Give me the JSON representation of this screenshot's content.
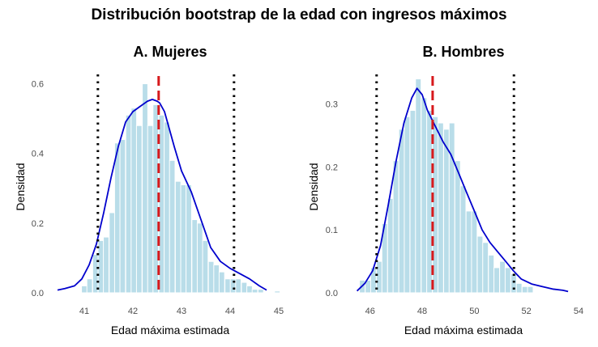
{
  "title": "Distribución bootstrap de la edad con ingresos máximos",
  "colors": {
    "bar_fill": "#add8e6",
    "bar_stroke": "#ffffff",
    "density_line": "#0000cd",
    "estimate_line": "#d7191c",
    "ci_line": "#000000"
  },
  "chart_data": [
    {
      "type": "bar",
      "title": "A. Mujeres",
      "xlabel": "Edad máxima estimada",
      "ylabel": "Densidad",
      "xlim": [
        40.4,
        45.1
      ],
      "ylim": [
        0,
        0.65
      ],
      "xticks": [
        41,
        42,
        43,
        44,
        45
      ],
      "yticks": [
        0.0,
        0.2,
        0.4,
        0.6
      ],
      "ytick_labels": [
        "0.0",
        "0.2",
        "0.4",
        "0.6"
      ],
      "bin_width": 0.113,
      "bins": [
        {
          "x": 41.0,
          "y": 0.02
        },
        {
          "x": 41.11,
          "y": 0.04
        },
        {
          "x": 41.23,
          "y": 0.11
        },
        {
          "x": 41.34,
          "y": 0.15
        },
        {
          "x": 41.45,
          "y": 0.16
        },
        {
          "x": 41.57,
          "y": 0.23
        },
        {
          "x": 41.68,
          "y": 0.43
        },
        {
          "x": 41.79,
          "y": 0.44
        },
        {
          "x": 41.91,
          "y": 0.51
        },
        {
          "x": 42.02,
          "y": 0.53
        },
        {
          "x": 42.13,
          "y": 0.48
        },
        {
          "x": 42.25,
          "y": 0.6
        },
        {
          "x": 42.36,
          "y": 0.48
        },
        {
          "x": 42.47,
          "y": 0.54
        },
        {
          "x": 42.59,
          "y": 0.51
        },
        {
          "x": 42.7,
          "y": 0.49
        },
        {
          "x": 42.81,
          "y": 0.38
        },
        {
          "x": 42.93,
          "y": 0.32
        },
        {
          "x": 43.04,
          "y": 0.31
        },
        {
          "x": 43.15,
          "y": 0.31
        },
        {
          "x": 43.27,
          "y": 0.21
        },
        {
          "x": 43.38,
          "y": 0.2
        },
        {
          "x": 43.49,
          "y": 0.15
        },
        {
          "x": 43.61,
          "y": 0.09
        },
        {
          "x": 43.72,
          "y": 0.08
        },
        {
          "x": 43.83,
          "y": 0.06
        },
        {
          "x": 43.95,
          "y": 0.04
        },
        {
          "x": 44.06,
          "y": 0.04
        },
        {
          "x": 44.17,
          "y": 0.04
        },
        {
          "x": 44.29,
          "y": 0.03
        },
        {
          "x": 44.4,
          "y": 0.02
        },
        {
          "x": 44.51,
          "y": 0.01
        },
        {
          "x": 44.63,
          "y": 0.01
        },
        {
          "x": 44.97,
          "y": 0.005
        }
      ],
      "density": {
        "x": [
          40.45,
          40.6,
          40.8,
          40.95,
          41.1,
          41.25,
          41.4,
          41.55,
          41.7,
          41.85,
          42.0,
          42.15,
          42.3,
          42.4,
          42.5,
          42.55,
          42.65,
          42.75,
          42.85,
          43.0,
          43.2,
          43.4,
          43.6,
          43.8,
          44.0,
          44.2,
          44.4,
          44.6,
          44.75
        ],
        "y": [
          0.008,
          0.012,
          0.02,
          0.04,
          0.08,
          0.14,
          0.23,
          0.33,
          0.42,
          0.49,
          0.52,
          0.535,
          0.55,
          0.555,
          0.55,
          0.545,
          0.52,
          0.47,
          0.42,
          0.35,
          0.29,
          0.21,
          0.13,
          0.09,
          0.07,
          0.055,
          0.04,
          0.02,
          0.008
        ]
      },
      "estimate": 42.53,
      "ci": [
        41.28,
        44.08
      ]
    },
    {
      "type": "bar",
      "title": "B. Hombres",
      "xlabel": "Edad máxima estimada",
      "ylabel": "Densidad",
      "xlim": [
        45.2,
        54.0
      ],
      "ylim": [
        0,
        0.36
      ],
      "xticks": [
        46,
        48,
        50,
        52,
        54
      ],
      "yticks": [
        0.0,
        0.1,
        0.2,
        0.3
      ],
      "ytick_labels": [
        "0.0",
        "0.1",
        "0.2",
        "0.3"
      ],
      "bin_width": 0.215,
      "bins": [
        {
          "x": 45.7,
          "y": 0.02
        },
        {
          "x": 45.92,
          "y": 0.02
        },
        {
          "x": 46.13,
          "y": 0.04
        },
        {
          "x": 46.35,
          "y": 0.05
        },
        {
          "x": 46.56,
          "y": 0.11
        },
        {
          "x": 46.78,
          "y": 0.15
        },
        {
          "x": 46.99,
          "y": 0.21
        },
        {
          "x": 47.21,
          "y": 0.26
        },
        {
          "x": 47.42,
          "y": 0.28
        },
        {
          "x": 47.64,
          "y": 0.29
        },
        {
          "x": 47.85,
          "y": 0.34
        },
        {
          "x": 48.07,
          "y": 0.31
        },
        {
          "x": 48.28,
          "y": 0.29
        },
        {
          "x": 48.5,
          "y": 0.28
        },
        {
          "x": 48.71,
          "y": 0.27
        },
        {
          "x": 48.93,
          "y": 0.26
        },
        {
          "x": 49.14,
          "y": 0.27
        },
        {
          "x": 49.36,
          "y": 0.21
        },
        {
          "x": 49.57,
          "y": 0.17
        },
        {
          "x": 49.79,
          "y": 0.13
        },
        {
          "x": 50.0,
          "y": 0.13
        },
        {
          "x": 50.22,
          "y": 0.09
        },
        {
          "x": 50.43,
          "y": 0.08
        },
        {
          "x": 50.65,
          "y": 0.06
        },
        {
          "x": 50.86,
          "y": 0.04
        },
        {
          "x": 51.08,
          "y": 0.05
        },
        {
          "x": 51.29,
          "y": 0.04
        },
        {
          "x": 51.51,
          "y": 0.03
        },
        {
          "x": 51.72,
          "y": 0.015
        },
        {
          "x": 51.94,
          "y": 0.01
        },
        {
          "x": 52.15,
          "y": 0.01
        }
      ],
      "density": {
        "x": [
          45.5,
          45.8,
          46.1,
          46.4,
          46.7,
          47.0,
          47.3,
          47.6,
          47.8,
          48.0,
          48.2,
          48.5,
          48.8,
          49.1,
          49.4,
          49.7,
          50.0,
          50.3,
          50.6,
          50.9,
          51.2,
          51.5,
          51.8,
          52.2,
          52.6,
          53.0,
          53.4,
          53.6
        ],
        "y": [
          0.003,
          0.015,
          0.035,
          0.075,
          0.14,
          0.21,
          0.27,
          0.31,
          0.325,
          0.315,
          0.29,
          0.265,
          0.24,
          0.22,
          0.19,
          0.16,
          0.13,
          0.1,
          0.08,
          0.065,
          0.05,
          0.035,
          0.022,
          0.014,
          0.01,
          0.006,
          0.004,
          0.002
        ]
      },
      "estimate": 48.4,
      "ci": [
        46.25,
        51.52
      ]
    }
  ]
}
